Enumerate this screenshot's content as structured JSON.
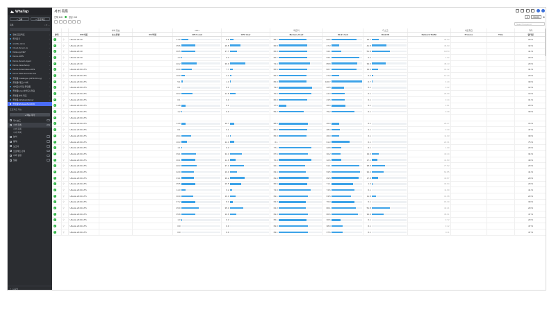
{
  "app": {
    "name": "WhaTap"
  },
  "sidebar": {
    "buttons": [
      "+ 그룹",
      "+ 프로젝트"
    ],
    "tool_label": "목록",
    "projects": [
      {
        "label": "전체 프로젝트"
      },
      {
        "label": "즐겨찾기"
      },
      {
        "label": "ansible-demo"
      },
      {
        "label": "Cloud-Server-ns"
      },
      {
        "label": "DataLog-DEV"
      },
      {
        "label": "Demo-AWS"
      },
      {
        "label": "Demo-Server-Agent"
      },
      {
        "label": "Demo-Java-Setup"
      },
      {
        "label": "Demo-Kubernetes-AWS"
      },
      {
        "label": "Demo-Web-Recorder-KR"
      },
      {
        "label": "플랫폼 Catalogue (APM-KR-ng)"
      },
      {
        "label": "플랫폼(데모)-서버"
      },
      {
        "label": "서버모니터링-플랫폼"
      },
      {
        "label": "플랫폼Linux서버모니터링"
      },
      {
        "label": "플랫폼서버-데모"
      },
      {
        "label": "플랫폼-WindowsServer"
      },
      {
        "label": "플랫폼WindowsSvr2019",
        "active": true
      }
    ],
    "section_label": "프로젝트 메뉴",
    "add_label": "+ 메뉴 추가",
    "menus": [
      {
        "label": "대시보드"
      },
      {
        "label": "서버 목록",
        "selected": true
      },
      {
        "label": "서버 목록",
        "sub": true
      },
      {
        "label": "서버 목록",
        "sub": true
      },
      {
        "label": "분석"
      },
      {
        "label": "통계"
      },
      {
        "label": "보고서"
      },
      {
        "label": "프로젝트 관리"
      },
      {
        "label": "서버 설정"
      },
      {
        "label": "알림"
      }
    ],
    "footer_label": "도움말"
  },
  "header": {
    "title": "서버 목록",
    "status_total": "전체 118",
    "status_ok": "정상 118",
    "refresh_value": "05925",
    "search_placeholder": "Search keyword"
  },
  "table": {
    "groups": [
      "",
      "",
      "",
      "서버 정보",
      "",
      "CPU",
      "",
      "메모리",
      "",
      "디스크",
      "",
      "네트워크",
      "",
      "기타"
    ],
    "columns": [
      "상태",
      "",
      "OS 이름",
      "호스트명",
      "OS 버전",
      "CPU Load",
      "CPU User",
      "Memory Used",
      "Disk Used",
      "Disk I/O",
      "Network Traffic",
      "Process",
      "Time",
      "업타임"
    ],
    "rows": [
      {
        "os": "Ubuntu 20.10",
        "cpu": "17.9",
        "cpu_f": 0.18,
        "user": "8.8",
        "user_f": 0.09,
        "mem": "65.7",
        "mem_f": 0.66,
        "disk": "82.6",
        "disk_f": 0.83,
        "io": "19.7",
        "io_f": 0.2,
        "net": "35.63",
        "up": "20 %"
      },
      {
        "os": "Ubuntu 20.10",
        "cpu": "35.6",
        "cpu_f": 0.36,
        "user": "26.8",
        "user_f": 0.27,
        "mem": "66.8",
        "mem_f": 0.67,
        "disk": "27.3",
        "disk_f": 0.27,
        "io": "41.8",
        "io_f": 0.42,
        "net": "46.63",
        "up": "32 %"
      },
      {
        "os": "Ubuntu 20.10",
        "cpu": "36.5",
        "cpu_f": 0.37,
        "user": "17.7",
        "user_f": 0.18,
        "mem": "66.9",
        "mem_f": 0.67,
        "disk": "34.1",
        "disk_f": 0.34,
        "io": "51.8",
        "io_f": 0.52,
        "net": "128.0",
        "up": "41 %"
      },
      {
        "os": "Ubuntu 20.10",
        "cpu": "1.3",
        "cpu_f": 0.01,
        "user": "0.3",
        "user_f": 0.0,
        "mem": "66.7",
        "mem_f": 0.67,
        "disk": "93.1",
        "disk_f": 0.93,
        "io": "0.2",
        "io_f": 0.0,
        "net": "1.02",
        "up": "20 %"
      },
      {
        "os": "Ubuntu 20.10",
        "cpu": "40.2",
        "cpu_f": 0.4,
        "user": "39.9",
        "user_f": 0.4,
        "mem": "74.4",
        "mem_f": 0.74,
        "disk": "85.8",
        "disk_f": 0.86,
        "io": "39.6",
        "io_f": 0.4,
        "net": "48.13",
        "up": "29 %"
      },
      {
        "os": "Ubuntu 20.04 LTS",
        "cpu": "26.9",
        "cpu_f": 0.27,
        "user": "7.7",
        "user_f": 0.08,
        "mem": "66.6",
        "mem_f": 0.67,
        "disk": "82.7",
        "disk_f": 0.83,
        "io": "19.0",
        "io_f": 0.19,
        "net": "31.42",
        "up": "31 %"
      },
      {
        "os": "Ubuntu 20.04 LTS",
        "cpu": "10.0",
        "cpu_f": 0.1,
        "user": "4.4",
        "user_f": 0.04,
        "mem": "66.3",
        "mem_f": 0.66,
        "disk": "27.0",
        "disk_f": 0.27,
        "io": "5.0",
        "io_f": 0.05,
        "net": "12.44",
        "up": "20 %"
      },
      {
        "os": "Ubuntu 20.04 LTS",
        "cpu": "5.1",
        "cpu_f": 0.05,
        "user": "1.3",
        "user_f": 0.01,
        "mem": "65.0",
        "mem_f": 0.65,
        "disk": "100.7",
        "disk_f": 1.0,
        "io": "0.7",
        "io_f": 0.01,
        "net": "3.20",
        "up": "30 %"
      },
      {
        "os": "Ubuntu 20.04 LTS",
        "cpu": "0.1",
        "cpu_f": 0.0,
        "user": "0.1",
        "user_f": 0.0,
        "mem": "79.2",
        "mem_f": 0.79,
        "disk": "42.5",
        "disk_f": 0.43,
        "io": "0.1",
        "io_f": 0.0,
        "net": "0.22",
        "up": "12 %"
      },
      {
        "os": "Ubuntu 20.04 LTS",
        "cpu": "30.3",
        "cpu_f": 0.3,
        "user": "14.8",
        "user_f": 0.15,
        "mem": "76.6",
        "mem_f": 0.77,
        "disk": "44.4",
        "disk_f": 0.44,
        "io": "0.1",
        "io_f": 0.0,
        "net": "26.69",
        "up": "19 %"
      },
      {
        "os": "Ubuntu 20.04 LTS",
        "cpu": "0.1",
        "cpu_f": 0.0,
        "user": "0.0",
        "user_f": 0.0,
        "mem": "66.9",
        "mem_f": 0.67,
        "disk": "43.5",
        "disk_f": 0.44,
        "io": "0.1",
        "io_f": 0.0,
        "net": "0.44",
        "up": "31 %"
      },
      {
        "os": "Ubuntu 20.04 LTS",
        "cpu": "11.8",
        "cpu_f": 0.12,
        "user": "0.1",
        "user_f": 0.0,
        "mem": "17.6",
        "mem_f": 0.18,
        "disk": "46.4",
        "disk_f": 0.46,
        "io": "0.1",
        "io_f": 0.0,
        "net": "3.81",
        "up": "20 %"
      },
      {
        "os": "Ubuntu 20.04 LTS",
        "cpu": "1.2",
        "cpu_f": 0.01,
        "user": "0.0",
        "user_f": 0.0,
        "mem": "59.2",
        "mem_f": 0.59,
        "disk": "75.2",
        "disk_f": 0.75,
        "io": "0.1",
        "io_f": 0.0,
        "net": "0.39",
        "up": "30 %"
      },
      {
        "os": "Ubuntu 20.04 LTS",
        "cpu": "",
        "cpu_f": 0,
        "user": "",
        "user_f": 0,
        "mem": "",
        "mem_f": 0,
        "disk": "",
        "disk_f": 0,
        "io": "",
        "io_f": 0,
        "net": "",
        "up": ""
      },
      {
        "os": "Ubuntu 20.04 LTS",
        "cpu": "11.9",
        "cpu_f": 0.12,
        "user": "10.7",
        "user_f": 0.11,
        "mem": "68.6",
        "mem_f": 0.69,
        "disk": "26.3",
        "disk_f": 0.26,
        "io": "0.1",
        "io_f": 0.0,
        "net": "28.27",
        "up": "15 %"
      },
      {
        "os": "Ubuntu 20.04 LTS",
        "cpu": "0.1",
        "cpu_f": 0.0,
        "user": "0.1",
        "user_f": 0.0,
        "mem": "66.9",
        "mem_f": 0.67,
        "disk": "28.4",
        "disk_f": 0.28,
        "io": "0.1",
        "io_f": 0.0,
        "net": "0.30",
        "up": "47 %"
      },
      {
        "os": "Ubuntu 20.04 LTS",
        "cpu": "26.4",
        "cpu_f": 0.26,
        "user": "1.1",
        "user_f": 0.01,
        "mem": "65.0",
        "mem_f": 0.65,
        "disk": "26.0",
        "disk_f": 0.26,
        "io": "0.1",
        "io_f": 0.0,
        "net": "11.03",
        "up": "30 %"
      },
      {
        "os": "Ubuntu 20.04 LTS",
        "cpu": "16.3",
        "cpu_f": 0.16,
        "user": "12.3",
        "user_f": 0.12,
        "mem": "0.1",
        "mem_f": 0.0,
        "disk": "61.3",
        "disk_f": 0.61,
        "io": "0.1",
        "io_f": 0.0,
        "net": "22.31",
        "up": "75 %"
      },
      {
        "os": "Ubuntu 20.04 LTS",
        "cpu": "1.1",
        "cpu_f": 0.01,
        "user": "0.3",
        "user_f": 0.0,
        "mem": "77.1",
        "mem_f": 0.77,
        "disk": "32.8",
        "disk_f": 0.33,
        "io": "0.1",
        "io_f": 0.0,
        "net": "1.00",
        "up": "23 %"
      },
      {
        "os": "Ubuntu 20.04 LTS",
        "cpu": "39.1",
        "cpu_f": 0.39,
        "user": "32.3",
        "user_f": 0.32,
        "mem": "67.6",
        "mem_f": 0.68,
        "disk": "30.2",
        "disk_f": 0.3,
        "io": "19.6",
        "io_f": 0.2,
        "net": "40.44",
        "up": "34 %"
      },
      {
        "os": "Ubuntu 20.04 LTS",
        "cpu": "36.1",
        "cpu_f": 0.36,
        "user": "14.6",
        "user_f": 0.15,
        "mem": "76.0",
        "mem_f": 0.76,
        "disk": "32.6",
        "disk_f": 0.33,
        "io": "17.1",
        "io_f": 0.17,
        "net": "41.83",
        "up": "40 %"
      },
      {
        "os": "Ubuntu 20.04 LTS",
        "cpu": "40.3",
        "cpu_f": 0.4,
        "user": "37.1",
        "user_f": 0.37,
        "mem": "62.1",
        "mem_f": 0.62,
        "disk": "91.1",
        "disk_f": 0.91,
        "io": "38.8",
        "io_f": 0.39,
        "net": "77.52",
        "up": "23 %"
      },
      {
        "os": "Ubuntu 20.04 LTS",
        "cpu": "32.9",
        "cpu_f": 0.33,
        "user": "19.0",
        "user_f": 0.19,
        "mem": "63.4",
        "mem_f": 0.63,
        "disk": "93.5",
        "disk_f": 0.94,
        "io": "34.4",
        "io_f": 0.34,
        "net": "62.85",
        "up": "41 %"
      },
      {
        "os": "Ubuntu 20.04 LTS",
        "cpu": "33.1",
        "cpu_f": 0.33,
        "user": "39.2",
        "user_f": 0.39,
        "mem": "69.9",
        "mem_f": 0.7,
        "disk": "89.5",
        "disk_f": 0.9,
        "io": "17.8",
        "io_f": 0.18,
        "net": "40.87",
        "up": "20 %"
      },
      {
        "os": "Ubuntu 20.04 LTS",
        "cpu": "35.5",
        "cpu_f": 0.36,
        "user": "29.5",
        "user_f": 0.3,
        "mem": "66.6",
        "mem_f": 0.67,
        "disk": "71.1",
        "disk_f": 0.71,
        "io": "1.0",
        "io_f": 0.01,
        "net": "33.64",
        "up": "29 %"
      },
      {
        "os": "Ubuntu 20.04 LTS",
        "cpu": "11.0",
        "cpu_f": 0.11,
        "user": "6.2",
        "user_f": 0.06,
        "mem": "74.9",
        "mem_f": 0.75,
        "disk": "74.6",
        "disk_f": 0.75,
        "io": "0.1",
        "io_f": 0.0,
        "net": "11.90",
        "up": "41 %"
      },
      {
        "os": "Ubuntu 20.04 LTS",
        "cpu": "30.9",
        "cpu_f": 0.31,
        "user": "16.3",
        "user_f": 0.16,
        "mem": "69.1",
        "mem_f": 0.69,
        "disk": "63.5",
        "disk_f": 0.64,
        "io": "11.8",
        "io_f": 0.12,
        "net": "31.68",
        "up": "23 %"
      },
      {
        "os": "Ubuntu 20.04 LTS",
        "cpu": "37.2",
        "cpu_f": 0.37,
        "user": "8.1",
        "user_f": 0.08,
        "mem": "63.3",
        "mem_f": 0.63,
        "disk": "76.0",
        "disk_f": 0.76,
        "io": "0.1",
        "io_f": 0.0,
        "net": "18.30",
        "up": "30 %"
      },
      {
        "os": "Ubuntu 20.04 LTS",
        "cpu": "45.9",
        "cpu_f": 0.46,
        "user": "35.3",
        "user_f": 0.35,
        "mem": "64.3",
        "mem_f": 0.64,
        "disk": "80.1",
        "disk_f": 0.8,
        "io": "51.8",
        "io_f": 0.52,
        "net": "42.21",
        "up": "20 %"
      },
      {
        "os": "Ubuntu 20.04 LTS",
        "cpu": "35.8",
        "cpu_f": 0.36,
        "user": "16.6",
        "user_f": 0.17,
        "mem": "69.3",
        "mem_f": 0.69,
        "disk": "86.6",
        "disk_f": 0.87,
        "io": "34.0",
        "io_f": 0.34,
        "net": "38.61",
        "up": "47 %"
      },
      {
        "os": "Ubuntu 20.04 LTS",
        "cpu": "1.0",
        "cpu_f": 0.01,
        "user": "0.3",
        "user_f": 0.0,
        "mem": "65.1",
        "mem_f": 0.65,
        "disk": "30.6",
        "disk_f": 0.31,
        "io": "0.1",
        "io_f": 0.0,
        "net": "0.72",
        "up": "20 %"
      },
      {
        "os": "Ubuntu 20.04 LTS",
        "cpu": "0.0",
        "cpu_f": 0.0,
        "user": "0.0",
        "user_f": 0.0,
        "mem": "69.0",
        "mem_f": 0.69,
        "disk": "38.0",
        "disk_f": 0.38,
        "io": "0.1",
        "io_f": 0.0,
        "net": "0.12",
        "up": "47 %"
      },
      {
        "os": "Ubuntu 20.04 LTS",
        "cpu": "0.0",
        "cpu_f": 0.0,
        "user": "0.0",
        "user_f": 0.0,
        "mem": "69.1",
        "mem_f": 0.69,
        "disk": "37.6",
        "disk_f": 0.38,
        "io": "0.1",
        "io_f": 0.0,
        "net": "0.11",
        "up": "47 %"
      }
    ]
  }
}
